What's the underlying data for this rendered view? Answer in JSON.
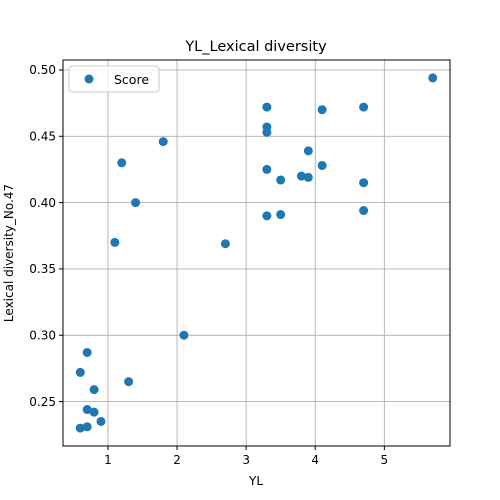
{
  "chart_data": {
    "type": "scatter",
    "title": "YL_Lexical diversity",
    "xlabel": "YL",
    "ylabel": "Lexical diversity_No.47",
    "xlim": [
      0.35,
      5.95
    ],
    "ylim": [
      0.2165,
      0.5075
    ],
    "xticks": [
      1,
      2,
      3,
      4,
      5
    ],
    "xtick_labels": [
      "1",
      "2",
      "3",
      "4",
      "5"
    ],
    "yticks": [
      0.25,
      0.3,
      0.35,
      0.4,
      0.45,
      0.5
    ],
    "ytick_labels": [
      "0.25",
      "0.30",
      "0.35",
      "0.40",
      "0.45",
      "0.50"
    ],
    "grid": true,
    "legend": {
      "position": "top-left",
      "entries": [
        "Score"
      ]
    },
    "colors": {
      "marker": "#1f77b4",
      "grid": "#b0b0b0",
      "axis": "#000000"
    },
    "series": [
      {
        "name": "Score",
        "points": [
          [
            0.6,
            0.272
          ],
          [
            0.6,
            0.23
          ],
          [
            0.7,
            0.287
          ],
          [
            0.7,
            0.244
          ],
          [
            0.7,
            0.231
          ],
          [
            0.8,
            0.259
          ],
          [
            0.8,
            0.242
          ],
          [
            0.9,
            0.235
          ],
          [
            1.1,
            0.37
          ],
          [
            1.2,
            0.43
          ],
          [
            1.3,
            0.265
          ],
          [
            1.4,
            0.4
          ],
          [
            1.8,
            0.446
          ],
          [
            2.1,
            0.3
          ],
          [
            2.7,
            0.369
          ],
          [
            3.3,
            0.472
          ],
          [
            3.3,
            0.457
          ],
          [
            3.3,
            0.453
          ],
          [
            3.3,
            0.425
          ],
          [
            3.3,
            0.39
          ],
          [
            3.5,
            0.417
          ],
          [
            3.5,
            0.391
          ],
          [
            3.8,
            0.42
          ],
          [
            3.9,
            0.439
          ],
          [
            3.9,
            0.419
          ],
          [
            4.1,
            0.47
          ],
          [
            4.1,
            0.428
          ],
          [
            4.7,
            0.472
          ],
          [
            4.7,
            0.415
          ],
          [
            4.7,
            0.394
          ],
          [
            5.7,
            0.494
          ]
        ]
      }
    ]
  }
}
